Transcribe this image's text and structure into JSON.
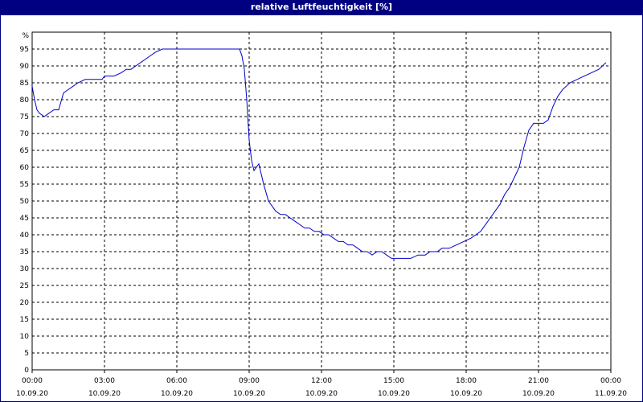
{
  "window": {
    "title": "relative Luftfeuchtigkeit [%]"
  },
  "colors": {
    "title_bar": "#000080",
    "line": "#0000cc",
    "grid": "#000000",
    "background": "#ffffff"
  },
  "chart_data": {
    "type": "line",
    "title": "relative Luftfeuchtigkeit [%]",
    "ylabel": "%",
    "xlabel": "",
    "ylim": [
      0,
      100
    ],
    "xlim": [
      0,
      24
    ],
    "grid": true,
    "yticks": [
      "0",
      "5",
      "10",
      "15",
      "20",
      "25",
      "30",
      "35",
      "40",
      "45",
      "50",
      "55",
      "60",
      "65",
      "70",
      "75",
      "80",
      "85",
      "90",
      "95"
    ],
    "ytick_unit_label": "%",
    "xticks": [
      {
        "time": "00:00",
        "date": "10.09.20"
      },
      {
        "time": "03:00",
        "date": "10.09.20"
      },
      {
        "time": "06:00",
        "date": "10.09.20"
      },
      {
        "time": "09:00",
        "date": "10.09.20"
      },
      {
        "time": "12:00",
        "date": "10.09.20"
      },
      {
        "time": "15:00",
        "date": "10.09.20"
      },
      {
        "time": "18:00",
        "date": "10.09.20"
      },
      {
        "time": "21:00",
        "date": "10.09.20"
      },
      {
        "time": "00:00",
        "date": "11.09.20"
      }
    ],
    "series": [
      {
        "x_unit": "hours since 10.09.20 00:00",
        "x": [
          0.0,
          0.1,
          0.2,
          0.3,
          0.5,
          0.7,
          0.9,
          1.1,
          1.3,
          1.5,
          1.7,
          1.9,
          2.2,
          2.5,
          2.9,
          3.0,
          3.4,
          3.7,
          3.9,
          4.1,
          4.3,
          4.5,
          4.7,
          4.9,
          5.1,
          5.4,
          8.0,
          8.6,
          8.7,
          8.8,
          8.9,
          9.0,
          9.1,
          9.2,
          9.4,
          9.5,
          9.6,
          9.8,
          10.0,
          10.1,
          10.3,
          10.5,
          10.7,
          10.9,
          11.1,
          11.3,
          11.5,
          11.7,
          11.9,
          12.1,
          12.3,
          12.5,
          12.7,
          12.9,
          13.1,
          13.3,
          13.5,
          13.7,
          13.9,
          14.1,
          14.3,
          14.5,
          14.7,
          14.9,
          15.1,
          15.3,
          15.5,
          15.7,
          16.0,
          16.3,
          16.5,
          16.8,
          17.0,
          17.3,
          17.6,
          17.9,
          18.2,
          18.4,
          18.6,
          18.8,
          19.0,
          19.2,
          19.4,
          19.6,
          19.8,
          20.0,
          20.2,
          20.4,
          20.6,
          20.8,
          21.0,
          21.2,
          21.4,
          21.6,
          21.8,
          22.0,
          22.3,
          22.6,
          22.9,
          23.2,
          23.5,
          23.8
        ],
        "values": [
          84,
          80,
          77,
          76,
          75,
          76,
          77,
          77,
          82,
          83,
          84,
          85,
          86,
          86,
          86,
          87,
          87,
          88,
          89,
          89,
          90,
          91,
          92,
          93,
          94,
          95,
          95,
          95,
          93,
          89,
          80,
          68,
          62,
          59,
          61,
          58,
          55,
          50,
          48,
          47,
          46,
          46,
          45,
          44,
          43,
          42,
          42,
          41,
          41,
          40,
          40,
          39,
          38,
          38,
          37,
          37,
          36,
          35,
          35,
          34,
          35,
          35,
          34,
          33,
          33,
          33,
          33,
          33,
          34,
          34,
          35,
          35,
          36,
          36,
          37,
          38,
          39,
          40,
          41,
          43,
          45,
          47,
          49,
          52,
          54,
          57,
          60,
          66,
          71,
          73,
          73,
          73,
          74,
          78,
          81,
          83,
          85,
          86,
          87,
          88,
          89,
          91
        ]
      }
    ]
  }
}
